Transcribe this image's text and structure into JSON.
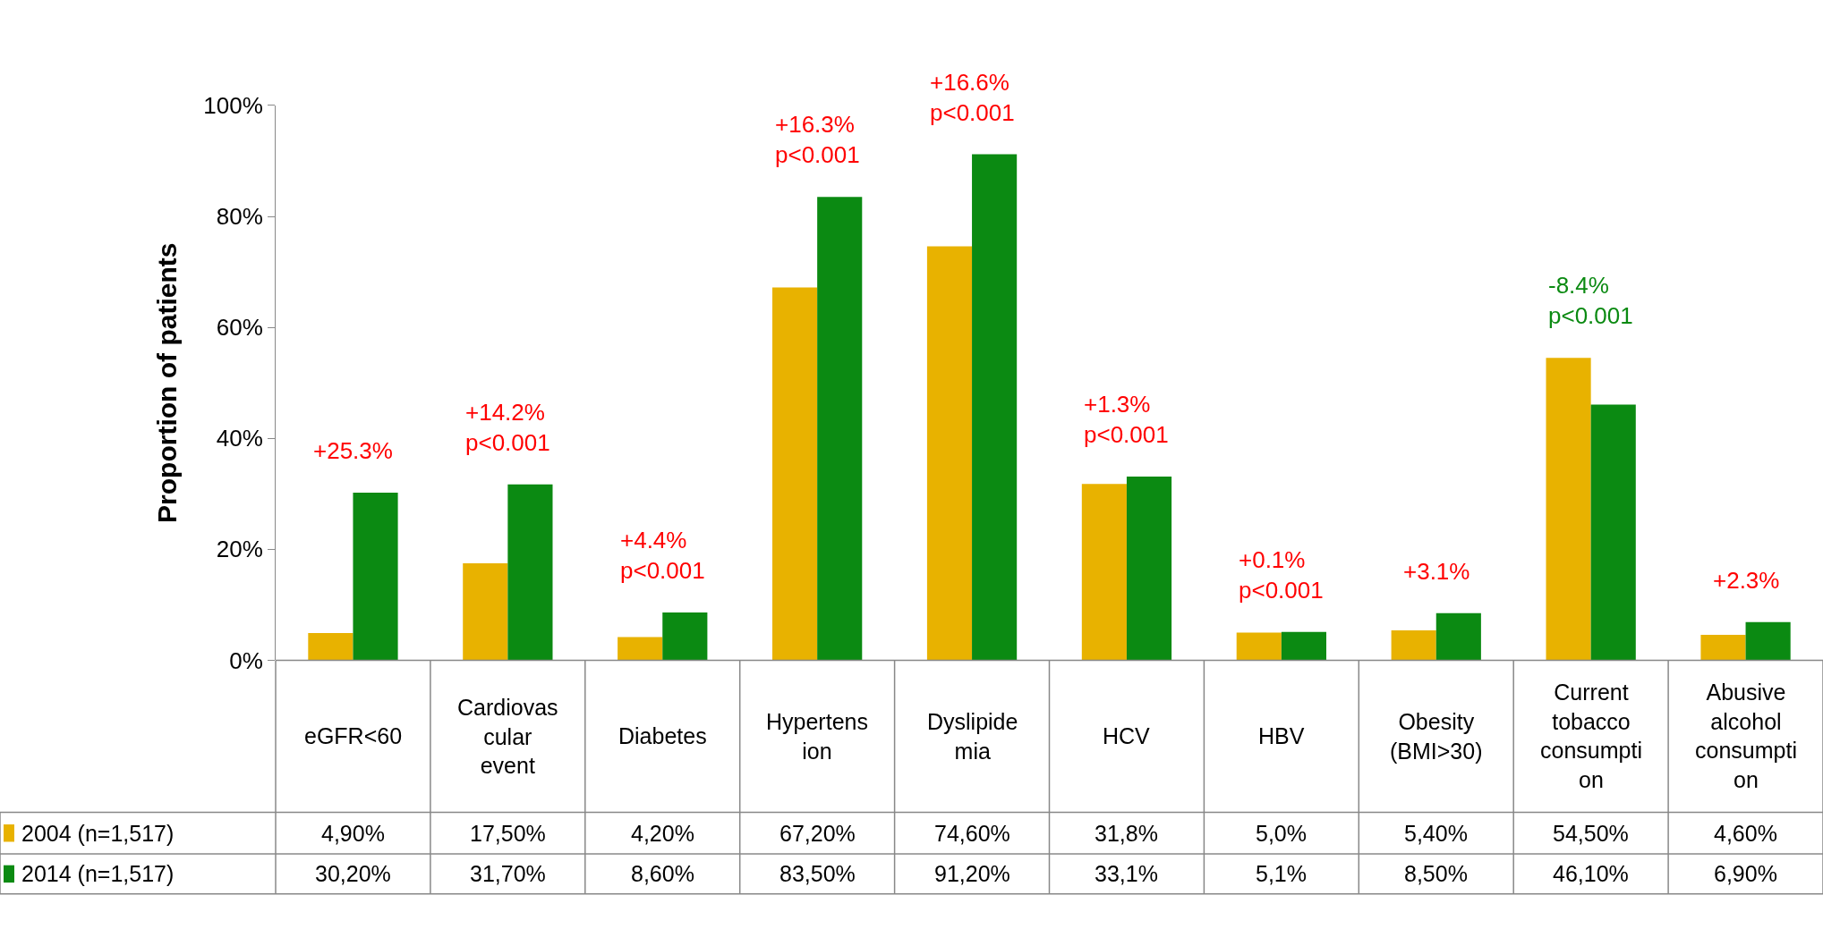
{
  "chart_data": {
    "type": "bar",
    "ylabel": "Proportion of patients",
    "categories": [
      "eGFR<60",
      "Cardiovas\ncular\nevent",
      "Diabetes",
      "Hypertens\nion",
      "Dyslipide\nmia",
      "HCV",
      "HBV",
      "Obesity\n(BMI>30)",
      "Current\ntobacco\nconsumpti\non",
      "Abusive\nalcohol\nconsumpti\non"
    ],
    "series": [
      {
        "name": "2004 (n=1,517)",
        "color": "#e8b200",
        "values": [
          4.9,
          17.5,
          4.2,
          67.2,
          74.6,
          31.8,
          5.0,
          5.4,
          54.5,
          4.6
        ],
        "value_labels": [
          "4,90%",
          "17,50%",
          "4,20%",
          "67,20%",
          "74,60%",
          "31,8%",
          "5,0%",
          "5,40%",
          "54,50%",
          "4,60%"
        ]
      },
      {
        "name": "2014 (n=1,517)",
        "color": "#0b8a12",
        "values": [
          30.2,
          31.7,
          8.6,
          83.5,
          91.2,
          33.1,
          5.1,
          8.5,
          46.1,
          6.9
        ],
        "value_labels": [
          "30,20%",
          "31,70%",
          "8,60%",
          "83,50%",
          "91,20%",
          "33,1%",
          "5,1%",
          "8,50%",
          "46,10%",
          "6,90%"
        ]
      }
    ],
    "ylim": [
      0,
      100
    ],
    "yticks": [
      {
        "value": 0,
        "label": "0%"
      },
      {
        "value": 20,
        "label": "20%"
      },
      {
        "value": 40,
        "label": "40%"
      },
      {
        "value": 60,
        "label": "60%"
      },
      {
        "value": 80,
        "label": "80%"
      },
      {
        "value": 100,
        "label": "100%"
      }
    ],
    "legend": "bottom left",
    "annotations": [
      "+25.3%",
      "+14.2%\np<0.001",
      "+4.4%\np<0.001",
      "+16.3%\np<0.001",
      "+16.6%\np<0.001",
      "+1.3%\np<0.001",
      "+0.1%\np<0.001",
      "+3.1%",
      "-8.4%\np<0.001",
      "+2.3%"
    ]
  }
}
